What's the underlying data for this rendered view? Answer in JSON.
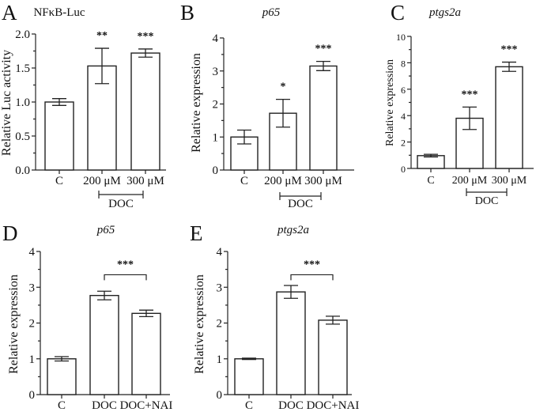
{
  "chart_data": [
    {
      "panel": "A",
      "type": "bar",
      "title": "NFκB-Luc",
      "title_italic": false,
      "xlabel": "",
      "ylabel": "Relative Luc activity",
      "ylim": [
        0,
        2.0
      ],
      "yticks": [
        0,
        0.5,
        1.0,
        1.5,
        2.0
      ],
      "ytick_labels": [
        "0.0",
        "0.5",
        "1.0",
        "1.5",
        "2.0"
      ],
      "minor_ticks": true,
      "categories": [
        "C",
        "200 μM",
        "300 μM"
      ],
      "values": [
        1.0,
        1.53,
        1.72
      ],
      "errors": [
        0.05,
        0.26,
        0.06
      ],
      "significance": [
        "",
        "**",
        "***"
      ],
      "group_label": {
        "text": "DOC",
        "from": 1,
        "to": 2
      },
      "comparison_bracket": null,
      "grid": false
    },
    {
      "panel": "B",
      "type": "bar",
      "title": "p65",
      "title_italic": true,
      "xlabel": "",
      "ylabel": "Relative expression",
      "ylim": [
        0,
        4
      ],
      "yticks": [
        0,
        1,
        2,
        3,
        4
      ],
      "ytick_labels": [
        "0",
        "1",
        "2",
        "3",
        "4"
      ],
      "minor_ticks": true,
      "categories": [
        "C",
        "200 μM",
        "300 μM"
      ],
      "values": [
        1.0,
        1.72,
        3.15
      ],
      "errors": [
        0.21,
        0.42,
        0.14
      ],
      "significance": [
        "",
        "*",
        "***"
      ],
      "group_label": {
        "text": "DOC",
        "from": 1,
        "to": 2
      },
      "comparison_bracket": null,
      "grid": false
    },
    {
      "panel": "C",
      "type": "bar",
      "title": "ptgs2a",
      "title_italic": true,
      "xlabel": "",
      "ylabel": "Relative expression",
      "ylim": [
        0,
        10
      ],
      "yticks": [
        0,
        2,
        4,
        6,
        8,
        10
      ],
      "ytick_labels": [
        "0",
        "2",
        "4",
        "6",
        "8",
        "10"
      ],
      "minor_ticks": true,
      "categories": [
        "C",
        "200 μM",
        "300 μM"
      ],
      "values": [
        0.97,
        3.8,
        7.7
      ],
      "errors": [
        0.1,
        0.85,
        0.35
      ],
      "significance": [
        "",
        "***",
        "***"
      ],
      "group_label": {
        "text": "DOC",
        "from": 1,
        "to": 2
      },
      "comparison_bracket": null,
      "grid": false
    },
    {
      "panel": "D",
      "type": "bar",
      "title": "p65",
      "title_italic": true,
      "xlabel": "",
      "ylabel": "Relative expression",
      "ylim": [
        0,
        4
      ],
      "yticks": [
        0,
        1,
        2,
        3,
        4
      ],
      "ytick_labels": [
        "0",
        "1",
        "2",
        "3",
        "4"
      ],
      "minor_ticks": true,
      "categories": [
        "C",
        "DOC",
        "DOC+NAI"
      ],
      "values": [
        1.0,
        2.77,
        2.27
      ],
      "errors": [
        0.06,
        0.12,
        0.09
      ],
      "significance": [
        "",
        "",
        ""
      ],
      "group_label": null,
      "comparison_bracket": {
        "from": 1,
        "to": 2,
        "label": "***",
        "y": 3.35
      },
      "grid": false
    },
    {
      "panel": "E",
      "type": "bar",
      "title": "ptgs2a",
      "title_italic": true,
      "xlabel": "",
      "ylabel": "Relative expression",
      "ylim": [
        0,
        4
      ],
      "yticks": [
        0,
        1,
        2,
        3,
        4
      ],
      "ytick_labels": [
        "0",
        "1",
        "2",
        "3",
        "4"
      ],
      "minor_ticks": true,
      "categories": [
        "C",
        "DOC",
        "DOC+NAI"
      ],
      "values": [
        1.0,
        2.87,
        2.08
      ],
      "errors": [
        0.02,
        0.18,
        0.11
      ],
      "significance": [
        "",
        "",
        ""
      ],
      "group_label": null,
      "comparison_bracket": {
        "from": 1,
        "to": 2,
        "label": "***",
        "y": 3.35
      },
      "grid": false
    }
  ]
}
